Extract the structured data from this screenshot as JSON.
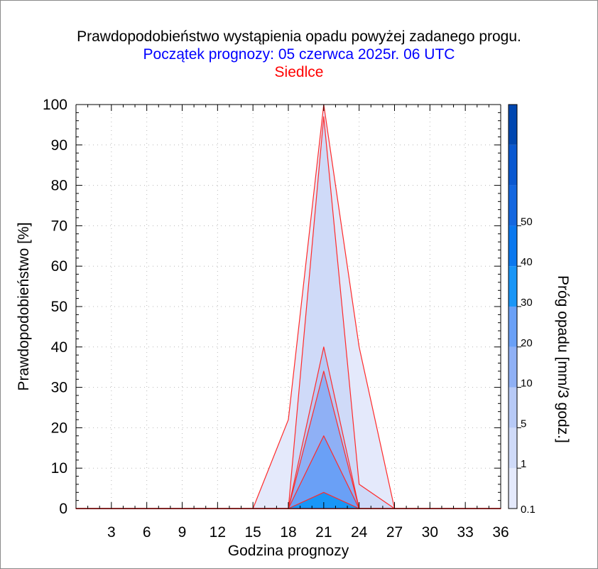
{
  "chart_data": {
    "type": "area",
    "title": "Prawdopodobieństwo wystąpienia opadu powyżej zadanego progu.",
    "subtitle": "Początek prognozy: 05 czerwca 2025r. 06 UTC",
    "location": "Siedlce",
    "xlabel": "Godzina prognozy",
    "ylabel": "Prawdopodobieństwo [%]",
    "xlim": [
      0,
      36
    ],
    "ylim": [
      0,
      100
    ],
    "x_ticks": [
      3,
      6,
      9,
      12,
      15,
      18,
      21,
      24,
      27,
      30,
      33,
      36
    ],
    "y_ticks": [
      0,
      10,
      20,
      30,
      40,
      50,
      60,
      70,
      80,
      90,
      100
    ],
    "grid": true,
    "x": [
      0,
      3,
      6,
      9,
      12,
      15,
      18,
      21,
      24,
      27,
      30,
      33,
      36
    ],
    "series": [
      {
        "threshold": "0.1",
        "values": [
          0,
          0,
          0,
          0,
          0,
          0,
          22,
          100,
          40,
          0,
          0,
          0,
          0
        ]
      },
      {
        "threshold": "1",
        "values": [
          0,
          0,
          0,
          0,
          0,
          0,
          0,
          97,
          6,
          0,
          0,
          0,
          0
        ]
      },
      {
        "threshold": "5",
        "values": [
          0,
          0,
          0,
          0,
          0,
          0,
          0,
          40,
          0,
          0,
          0,
          0,
          0
        ]
      },
      {
        "threshold": "10",
        "values": [
          0,
          0,
          0,
          0,
          0,
          0,
          0,
          34,
          0,
          0,
          0,
          0,
          0
        ]
      },
      {
        "threshold": "20",
        "values": [
          0,
          0,
          0,
          0,
          0,
          0,
          0,
          18,
          0,
          0,
          0,
          0,
          0
        ]
      },
      {
        "threshold": "30",
        "values": [
          0,
          0,
          0,
          0,
          0,
          0,
          0,
          4,
          0,
          0,
          0,
          0,
          0
        ]
      }
    ],
    "colorbar": {
      "label": "Próg opadu [mm/3 godz.]",
      "tick_labels": [
        "0.1",
        "1",
        "5",
        "10",
        "20",
        "30",
        "40",
        "50"
      ],
      "colors": [
        "#e4e9fb",
        "#cfdaf8",
        "#b7c9f6",
        "#8fb0f5",
        "#6aa0f6",
        "#1996f7",
        "#0a78ee",
        "#1467e0",
        "#0a58d0",
        "#0047b0"
      ]
    },
    "outline_color": "#ff2a2a",
    "subtitle_color": "#0000ff",
    "location_color": "#ff0000"
  }
}
